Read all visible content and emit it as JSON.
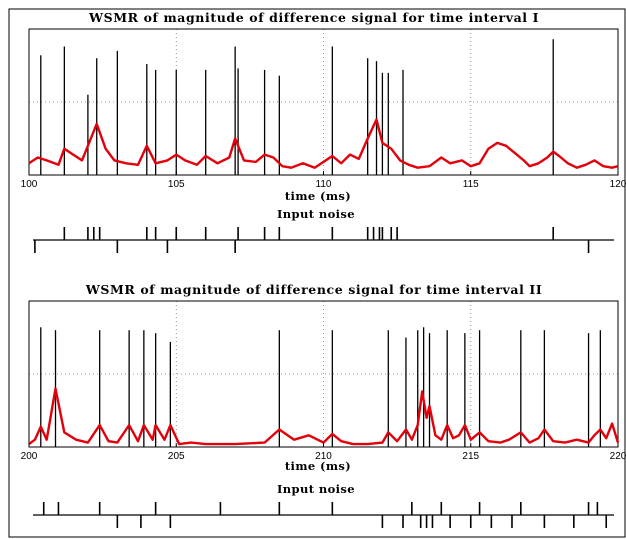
{
  "chart_data": [
    {
      "type": "line",
      "title": "WSMR of magnitude of difference signal for time interval I",
      "xlabel": "time (ms)",
      "ylabel": "",
      "xlim": [
        100,
        120
      ],
      "ylim": [
        0,
        1
      ],
      "xticks": [
        "100",
        "105",
        "110",
        "115",
        "120"
      ],
      "grid": true,
      "series": [
        {
          "color": "#000000",
          "style": "spikes",
          "x": [
            100.4,
            101.2,
            102.0,
            102.3,
            103.0,
            104.0,
            104.3,
            105.0,
            106.0,
            107.0,
            107.1,
            108.0,
            108.5,
            110.3,
            111.5,
            111.8,
            112.0,
            112.2,
            112.7,
            117.8
          ],
          "values": [
            0.82,
            0.88,
            0.55,
            0.8,
            0.85,
            0.76,
            0.72,
            0.72,
            0.72,
            0.88,
            0.73,
            0.72,
            0.68,
            0.88,
            0.8,
            0.78,
            0.7,
            0.7,
            0.72,
            0.93
          ]
        },
        {
          "color": "#e3000b",
          "style": "envelope",
          "x": [
            100,
            100.3,
            100.6,
            101.0,
            101.2,
            101.5,
            101.8,
            102.0,
            102.3,
            102.6,
            102.9,
            103.3,
            103.7,
            104.0,
            104.3,
            104.7,
            105.0,
            105.3,
            105.7,
            106.0,
            106.4,
            106.8,
            107.0,
            107.3,
            107.7,
            108.0,
            108.3,
            108.6,
            108.9,
            109.3,
            109.7,
            110.0,
            110.3,
            110.6,
            110.9,
            111.2,
            111.5,
            111.8,
            112.0,
            112.3,
            112.6,
            112.9,
            113.2,
            113.6,
            114.0,
            114.3,
            114.7,
            115.0,
            115.3,
            115.6,
            115.9,
            116.2,
            116.5,
            116.8,
            117.0,
            117.3,
            117.6,
            117.8,
            118.0,
            118.3,
            118.6,
            118.9,
            119.2,
            119.5,
            119.8,
            120.0
          ],
          "values": [
            0.08,
            0.12,
            0.1,
            0.07,
            0.18,
            0.14,
            0.1,
            0.2,
            0.35,
            0.18,
            0.1,
            0.08,
            0.07,
            0.2,
            0.08,
            0.1,
            0.14,
            0.1,
            0.07,
            0.13,
            0.08,
            0.12,
            0.25,
            0.1,
            0.09,
            0.14,
            0.12,
            0.06,
            0.05,
            0.08,
            0.05,
            0.09,
            0.13,
            0.08,
            0.14,
            0.11,
            0.25,
            0.38,
            0.22,
            0.18,
            0.1,
            0.07,
            0.05,
            0.06,
            0.12,
            0.08,
            0.1,
            0.06,
            0.08,
            0.18,
            0.22,
            0.2,
            0.15,
            0.1,
            0.06,
            0.08,
            0.12,
            0.16,
            0.13,
            0.08,
            0.05,
            0.07,
            0.1,
            0.06,
            0.05,
            0.06
          ]
        }
      ],
      "noise": {
        "up": [
          101.2,
          102.0,
          102.2,
          102.4,
          104.0,
          104.3,
          105.0,
          106.0,
          107.1,
          108.0,
          108.5,
          110.3,
          111.5,
          111.7,
          111.9,
          112.0,
          112.3,
          112.5,
          117.8
        ],
        "down": [
          100.2,
          103.0,
          104.7,
          107.0,
          119.0
        ]
      }
    },
    {
      "type": "line",
      "title": "WSMR of magnitude of difference signal for time interval II",
      "xlabel": "time (ms)",
      "ylabel": "",
      "xlim": [
        200,
        220
      ],
      "ylim": [
        0,
        1
      ],
      "xticks": [
        "200",
        "205",
        "210",
        "215",
        "220"
      ],
      "grid": true,
      "series": [
        {
          "color": "#000000",
          "style": "spikes",
          "x": [
            200.4,
            200.9,
            202.4,
            203.4,
            203.9,
            204.3,
            204.8,
            208.5,
            210.3,
            212.2,
            212.8,
            213.2,
            213.4,
            213.6,
            214.2,
            214.8,
            215.3,
            216.7,
            217.5,
            219.0,
            219.4
          ],
          "values": [
            0.82,
            0.8,
            0.8,
            0.8,
            0.8,
            0.78,
            0.72,
            0.8,
            0.8,
            0.8,
            0.75,
            0.8,
            0.82,
            0.78,
            0.8,
            0.78,
            0.8,
            0.8,
            0.8,
            0.78,
            0.8
          ]
        },
        {
          "color": "#e3000b",
          "style": "envelope",
          "x": [
            200,
            200.2,
            200.4,
            200.6,
            200.9,
            201.2,
            201.6,
            202.0,
            202.4,
            202.7,
            203.0,
            203.4,
            203.7,
            203.9,
            204.2,
            204.3,
            204.6,
            204.8,
            205.1,
            205.5,
            206.0,
            207.0,
            208.0,
            208.5,
            209.0,
            209.5,
            210.0,
            210.3,
            210.6,
            211.0,
            211.5,
            212.0,
            212.2,
            212.5,
            212.8,
            213.0,
            213.2,
            213.35,
            213.5,
            213.6,
            213.8,
            214.0,
            214.2,
            214.4,
            214.6,
            214.8,
            215.0,
            215.3,
            215.6,
            216.0,
            216.3,
            216.7,
            217.0,
            217.3,
            217.5,
            217.8,
            218.2,
            218.6,
            219.0,
            219.2,
            219.4,
            219.6,
            219.8,
            220.0
          ],
          "values": [
            0.02,
            0.05,
            0.14,
            0.05,
            0.4,
            0.1,
            0.05,
            0.03,
            0.15,
            0.04,
            0.03,
            0.15,
            0.04,
            0.15,
            0.05,
            0.15,
            0.05,
            0.15,
            0.02,
            0.03,
            0.02,
            0.02,
            0.03,
            0.12,
            0.05,
            0.08,
            0.03,
            0.09,
            0.04,
            0.02,
            0.02,
            0.03,
            0.1,
            0.04,
            0.12,
            0.05,
            0.15,
            0.38,
            0.2,
            0.28,
            0.08,
            0.05,
            0.15,
            0.06,
            0.08,
            0.15,
            0.05,
            0.1,
            0.04,
            0.03,
            0.05,
            0.1,
            0.03,
            0.06,
            0.12,
            0.04,
            0.03,
            0.05,
            0.03,
            0.08,
            0.12,
            0.06,
            0.16,
            0.03
          ]
        }
      ],
      "noise": {
        "up": [
          200.5,
          201.0,
          202.4,
          204.3,
          206.5,
          208.5,
          210.3,
          213.0,
          214.0,
          215.3,
          216.7,
          219.0,
          219.3
        ],
        "down": [
          203.0,
          203.8,
          204.8,
          212.0,
          212.7,
          213.3,
          213.5,
          213.7,
          214.3,
          215.0,
          215.7,
          216.4,
          217.5,
          218.5,
          219.6
        ]
      }
    }
  ]
}
